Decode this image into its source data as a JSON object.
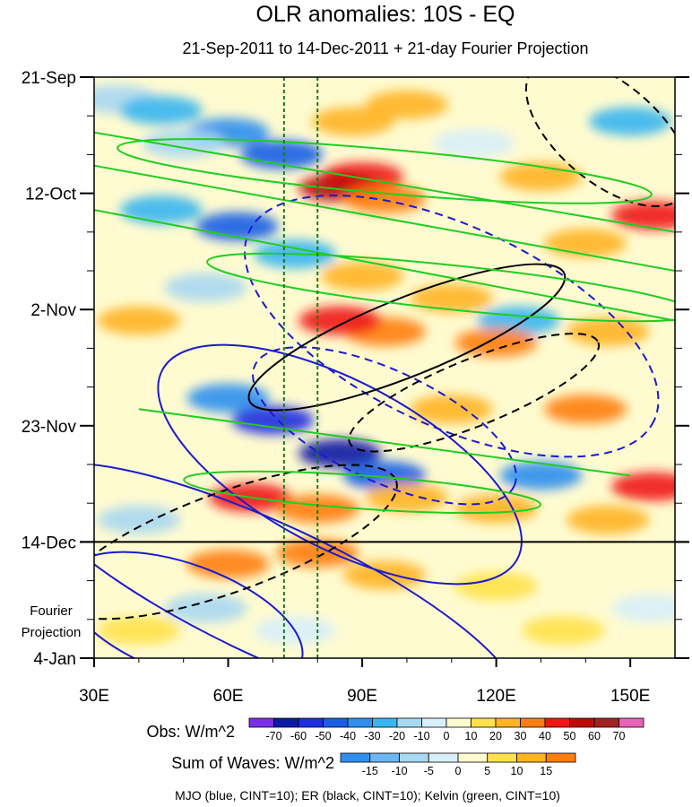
{
  "chart_data": {
    "type": "heatmap",
    "title": "OLR anomalies: 10S - EQ",
    "subtitle": "21-Sep-2011 to 14-Dec-2011 + 21-day Fourier Projection",
    "x_axis": {
      "unit": "degrees longitude",
      "range": [
        30,
        160
      ],
      "ticks": [
        30,
        60,
        90,
        120,
        150
      ],
      "tick_labels": [
        "30E",
        "60E",
        "90E",
        "120E",
        "150E"
      ]
    },
    "y_axis": {
      "unit": "days since 21-Sep-2011",
      "range": [
        0,
        105
      ],
      "ticks": [
        0,
        21,
        42,
        63,
        84,
        105
      ],
      "tick_labels": [
        "21-Sep",
        "12-Oct",
        "2-Nov",
        "23-Nov",
        "14-Dec",
        "4-Jan"
      ]
    },
    "observation_end_day": 84,
    "projection_label": [
      "Fourier",
      "Projection"
    ],
    "reference_longitudes": [
      72.5,
      80
    ],
    "obs_colorbar": {
      "label": "Obs: W/m^2",
      "levels": [
        -70,
        -60,
        -50,
        -40,
        -30,
        -20,
        -10,
        0,
        10,
        20,
        30,
        40,
        50,
        60,
        70
      ],
      "colors": [
        "#7b2ee8",
        "#0c1aa5",
        "#1e2ee0",
        "#1b5ee6",
        "#2e8ff0",
        "#39b6f0",
        "#a8d8f2",
        "#d8f0fa",
        "#fffbd0",
        "#ffe24a",
        "#ffb422",
        "#ff7e10",
        "#f01414",
        "#c00a0a",
        "#a12222",
        "#e864b8"
      ]
    },
    "waves_colorbar": {
      "label": "Sum of Waves: W/m^2",
      "levels": [
        -15,
        -10,
        -5,
        0,
        5,
        10,
        15
      ],
      "colors": [
        "#2e8ff0",
        "#6cb6f2",
        "#a8d8f2",
        "#d8f0fa",
        "#fffbd0",
        "#ffe24a",
        "#ffb422",
        "#ff7e10"
      ]
    },
    "series": [
      {
        "name": "MJO",
        "color": "#1a1ad0",
        "contour_interval": 10
      },
      {
        "name": "ER",
        "color": "#000000",
        "contour_interval": 10
      },
      {
        "name": "Kelvin",
        "color": "#22cc22",
        "contour_interval": 10
      }
    ],
    "cells": [
      {
        "lon": 35,
        "day": 4,
        "v": -20
      },
      {
        "lon": 45,
        "day": 6,
        "v": -30
      },
      {
        "lon": 60,
        "day": 10,
        "v": -40
      },
      {
        "lon": 72,
        "day": 14,
        "v": -50
      },
      {
        "lon": 50,
        "day": 12,
        "v": -20
      },
      {
        "lon": 88,
        "day": 8,
        "v": 20
      },
      {
        "lon": 100,
        "day": 5,
        "v": 20
      },
      {
        "lon": 90,
        "day": 18,
        "v": 40
      },
      {
        "lon": 85,
        "day": 20,
        "v": 50
      },
      {
        "lon": 95,
        "day": 22,
        "v": 30
      },
      {
        "lon": 115,
        "day": 12,
        "v": -10
      },
      {
        "lon": 130,
        "day": 18,
        "v": 20
      },
      {
        "lon": 150,
        "day": 8,
        "v": -30
      },
      {
        "lon": 155,
        "day": 25,
        "v": 40
      },
      {
        "lon": 140,
        "day": 30,
        "v": 20
      },
      {
        "lon": 45,
        "day": 24,
        "v": -30
      },
      {
        "lon": 62,
        "day": 27,
        "v": -50
      },
      {
        "lon": 75,
        "day": 32,
        "v": -30
      },
      {
        "lon": 55,
        "day": 38,
        "v": -20
      },
      {
        "lon": 90,
        "day": 36,
        "v": 20
      },
      {
        "lon": 95,
        "day": 46,
        "v": 30
      },
      {
        "lon": 85,
        "day": 44,
        "v": 40
      },
      {
        "lon": 110,
        "day": 40,
        "v": 20
      },
      {
        "lon": 125,
        "day": 44,
        "v": -30
      },
      {
        "lon": 120,
        "day": 48,
        "v": 30
      },
      {
        "lon": 145,
        "day": 46,
        "v": 20
      },
      {
        "lon": 40,
        "day": 44,
        "v": 20
      },
      {
        "lon": 60,
        "day": 58,
        "v": -40
      },
      {
        "lon": 70,
        "day": 62,
        "v": -60
      },
      {
        "lon": 85,
        "day": 68,
        "v": -70
      },
      {
        "lon": 95,
        "day": 72,
        "v": -50
      },
      {
        "lon": 110,
        "day": 60,
        "v": 20
      },
      {
        "lon": 140,
        "day": 60,
        "v": 30
      },
      {
        "lon": 155,
        "day": 74,
        "v": 40
      },
      {
        "lon": 130,
        "day": 72,
        "v": -40
      },
      {
        "lon": 65,
        "day": 76,
        "v": 40
      },
      {
        "lon": 80,
        "day": 78,
        "v": 30
      },
      {
        "lon": 100,
        "day": 76,
        "v": 20
      },
      {
        "lon": 120,
        "day": 78,
        "v": 20
      },
      {
        "lon": 145,
        "day": 80,
        "v": 20
      },
      {
        "lon": 40,
        "day": 80,
        "v": -20
      },
      {
        "lon": 60,
        "day": 88,
        "v": 15
      },
      {
        "lon": 80,
        "day": 86,
        "v": 15
      },
      {
        "lon": 95,
        "day": 90,
        "v": 10
      },
      {
        "lon": 55,
        "day": 96,
        "v": -10
      },
      {
        "lon": 75,
        "day": 100,
        "v": -5
      },
      {
        "lon": 120,
        "day": 92,
        "v": 5
      },
      {
        "lon": 135,
        "day": 100,
        "v": 5
      },
      {
        "lon": 155,
        "day": 96,
        "v": -5
      },
      {
        "lon": 40,
        "day": 100,
        "v": 5
      }
    ]
  },
  "legend_footer": "MJO (blue, CINT=10); ER (black, CINT=10); Kelvin (green, CINT=10)"
}
